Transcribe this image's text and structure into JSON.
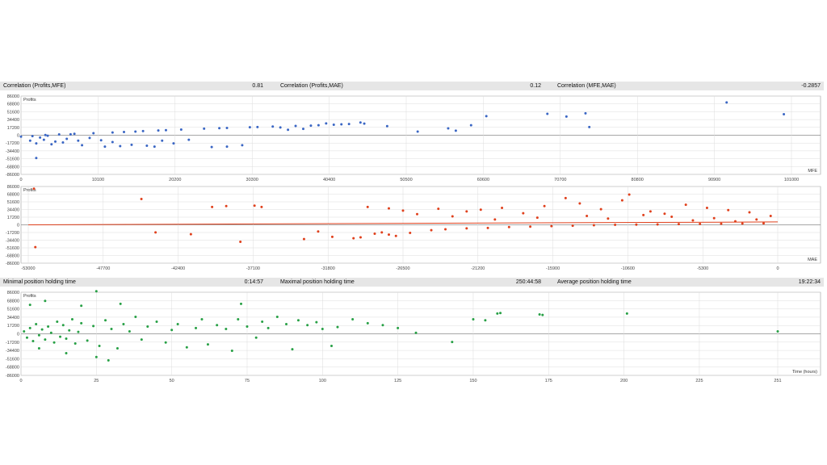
{
  "stats_top": {
    "corr_profits_mfe_label": "Correlation (Profits,MFE)",
    "corr_profits_mfe_value": "0.81",
    "corr_profits_mae_label": "Correlation (Profits,MAE)",
    "corr_profits_mae_value": "0.12",
    "corr_mfe_mae_label": "Correlation (MFE,MAE)",
    "corr_mfe_mae_value": "-0.2857"
  },
  "stats_mid": {
    "min_hold_label": "Minimal position holding time",
    "min_hold_value": "0:14:57",
    "max_hold_label": "Maximal position holding time",
    "max_hold_value": "250:44:58",
    "avg_hold_label": "Average position holding time",
    "avg_hold_value": "19:22:34"
  },
  "colors": {
    "mfe": "#3a66c4",
    "mae": "#e0401c",
    "time": "#27a045",
    "grid": "#dcdcdc",
    "axis": "#9a9a9a"
  },
  "chart_data": [
    {
      "type": "scatter",
      "id": "mfe",
      "ylabel": "Profits",
      "xlabel": "MFE",
      "ylim": [
        -86000,
        86000
      ],
      "xlim": [
        0,
        101000
      ],
      "yticks": [
        "86000",
        "68800",
        "51600",
        "34400",
        "17200",
        "0",
        "-17200",
        "-34400",
        "-51600",
        "-68800",
        "-86000"
      ],
      "xticks": [
        "0",
        "10100",
        "20200",
        "30300",
        "40400",
        "50500",
        "60600",
        "70700",
        "80800",
        "90900",
        "101000"
      ],
      "grid": true,
      "color": "#3a66c4",
      "points": [
        [
          0,
          -3000
        ],
        [
          1200,
          -12000
        ],
        [
          2500,
          -5000
        ],
        [
          3000,
          -10000
        ],
        [
          4500,
          -14000
        ],
        [
          6000,
          -8000
        ],
        [
          7500,
          -12000
        ],
        [
          9000,
          -6000
        ],
        [
          10500,
          -11000
        ],
        [
          12000,
          -15000
        ],
        [
          1500,
          -2000
        ],
        [
          3200,
          500
        ],
        [
          5000,
          1800
        ],
        [
          7000,
          3000
        ],
        [
          9500,
          4500
        ],
        [
          12000,
          6000
        ],
        [
          15000,
          8000
        ],
        [
          18000,
          10500
        ],
        [
          21000,
          12500
        ],
        [
          24000,
          14500
        ],
        [
          27000,
          16000
        ],
        [
          30000,
          17500
        ],
        [
          33000,
          19000
        ],
        [
          36000,
          20500
        ],
        [
          39000,
          22000
        ],
        [
          41000,
          23000
        ],
        [
          43000,
          24500
        ],
        [
          45000,
          25500
        ],
        [
          2000,
          -18000
        ],
        [
          4000,
          -20000
        ],
        [
          8000,
          -22000
        ],
        [
          11000,
          -25000
        ],
        [
          13000,
          -24000
        ],
        [
          14500,
          -21000
        ],
        [
          16500,
          -23000
        ],
        [
          18500,
          -12000
        ],
        [
          20000,
          -18000
        ],
        [
          22000,
          -10000
        ],
        [
          25000,
          -26000
        ],
        [
          27000,
          -25000
        ],
        [
          29000,
          -22000
        ],
        [
          35000,
          12000
        ],
        [
          37000,
          14000
        ],
        [
          40000,
          26000
        ],
        [
          42000,
          24000
        ],
        [
          44500,
          28000
        ],
        [
          48000,
          20000
        ],
        [
          52000,
          8000
        ],
        [
          56000,
          15000
        ],
        [
          57000,
          10000
        ],
        [
          59000,
          22000
        ],
        [
          61000,
          42000
        ],
        [
          69000,
          47000
        ],
        [
          71500,
          41000
        ],
        [
          74000,
          48000
        ],
        [
          74500,
          18000
        ],
        [
          92500,
          72000
        ],
        [
          100000,
          46000
        ],
        [
          3500,
          -1000
        ],
        [
          6500,
          2000
        ],
        [
          13500,
          7000
        ],
        [
          16000,
          9000
        ],
        [
          19000,
          11000
        ],
        [
          26000,
          15500
        ],
        [
          31000,
          18000
        ],
        [
          34000,
          17000
        ],
        [
          38000,
          21000
        ],
        [
          5500,
          -16000
        ],
        [
          17500,
          -25000
        ],
        [
          2000,
          -50000
        ]
      ]
    },
    {
      "type": "scatter",
      "id": "mae",
      "ylabel": "Profits",
      "xlabel": "MAE",
      "ylim": [
        -86000,
        86000
      ],
      "xlim": [
        -53000,
        0
      ],
      "yticks": [
        "86000",
        "68800",
        "51600",
        "34400",
        "17200",
        "0",
        "-17200",
        "-34400",
        "-51600",
        "-68800",
        "-86000"
      ],
      "xticks": [
        "-53000",
        "-47700",
        "-42400",
        "-37100",
        "-31800",
        "-26500",
        "-21200",
        "-15900",
        "-10600",
        "-5300",
        "0"
      ],
      "grid": true,
      "color": "#e0401c",
      "trendline": {
        "from": [
          -53000,
          0
        ],
        "to": [
          0,
          6500
        ]
      },
      "points": [
        [
          -52500,
          -50000
        ],
        [
          -52600,
          81000
        ],
        [
          -45000,
          58000
        ],
        [
          -44000,
          -17000
        ],
        [
          -41500,
          -21000
        ],
        [
          -40000,
          40000
        ],
        [
          -39000,
          42000
        ],
        [
          -38000,
          -38000
        ],
        [
          -37000,
          43000
        ],
        [
          -36500,
          40000
        ],
        [
          -33500,
          -32000
        ],
        [
          -32500,
          -15000
        ],
        [
          -31500,
          -27000
        ],
        [
          -30000,
          -30000
        ],
        [
          -29500,
          -28000
        ],
        [
          -28500,
          -20000
        ],
        [
          -28000,
          -17000
        ],
        [
          -27500,
          -22000
        ],
        [
          -27000,
          -25000
        ],
        [
          -26000,
          -18000
        ],
        [
          -24500,
          -12000
        ],
        [
          -23500,
          -10000
        ],
        [
          -22000,
          -8000
        ],
        [
          -20500,
          -7000
        ],
        [
          -19000,
          -5000
        ],
        [
          -17500,
          -4000
        ],
        [
          -16000,
          -3000
        ],
        [
          -14500,
          -2000
        ],
        [
          -13000,
          -1000
        ],
        [
          -11500,
          0
        ],
        [
          -10000,
          500
        ],
        [
          -8500,
          1000
        ],
        [
          -7000,
          1500
        ],
        [
          -5500,
          2000
        ],
        [
          -4000,
          2500
        ],
        [
          -2500,
          3000
        ],
        [
          -1000,
          3500
        ],
        [
          -29000,
          40000
        ],
        [
          -27500,
          37000
        ],
        [
          -26500,
          32000
        ],
        [
          -24000,
          36000
        ],
        [
          -22000,
          30000
        ],
        [
          -21000,
          34000
        ],
        [
          -19500,
          38000
        ],
        [
          -18000,
          26000
        ],
        [
          -16500,
          42000
        ],
        [
          -15000,
          60000
        ],
        [
          -14000,
          48000
        ],
        [
          -12500,
          35000
        ],
        [
          -11000,
          55000
        ],
        [
          -10500,
          68000
        ],
        [
          -9000,
          30000
        ],
        [
          -8000,
          25000
        ],
        [
          -6500,
          45000
        ],
        [
          -5000,
          38000
        ],
        [
          -3500,
          33000
        ],
        [
          -2000,
          28000
        ],
        [
          -500,
          20000
        ],
        [
          -1500,
          12000
        ],
        [
          -3000,
          8000
        ],
        [
          -4500,
          15000
        ],
        [
          -6000,
          10000
        ],
        [
          -7500,
          18000
        ],
        [
          -9500,
          22000
        ],
        [
          -12000,
          14000
        ],
        [
          -13500,
          20000
        ],
        [
          -17000,
          16000
        ],
        [
          -20000,
          12000
        ],
        [
          -23000,
          19000
        ],
        [
          -25500,
          24000
        ]
      ]
    },
    {
      "type": "scatter",
      "id": "time",
      "ylabel": "Profits",
      "xlabel": "Time (hours)",
      "ylim": [
        -86000,
        86000
      ],
      "xlim": [
        0,
        251
      ],
      "yticks": [
        "86000",
        "68800",
        "51600",
        "34400",
        "17200",
        "0",
        "-17200",
        "-34400",
        "-51600",
        "-68800",
        "-86000"
      ],
      "xticks": [
        "0",
        "25",
        "50",
        "75",
        "100",
        "125",
        "150",
        "175",
        "200",
        "225",
        "251"
      ],
      "grid": true,
      "color": "#27a045",
      "points": [
        [
          1,
          5000
        ],
        [
          2,
          -8000
        ],
        [
          3,
          12000
        ],
        [
          4,
          -15000
        ],
        [
          5,
          20000
        ],
        [
          6,
          -3000
        ],
        [
          7,
          9000
        ],
        [
          8,
          -12000
        ],
        [
          9,
          15000
        ],
        [
          10,
          2000
        ],
        [
          11,
          -18000
        ],
        [
          12,
          25000
        ],
        [
          13,
          -6000
        ],
        [
          14,
          18000
        ],
        [
          15,
          -10000
        ],
        [
          16,
          7000
        ],
        [
          17,
          30000
        ],
        [
          18,
          -20000
        ],
        [
          19,
          4000
        ],
        [
          20,
          22000
        ],
        [
          22,
          -14000
        ],
        [
          24,
          16000
        ],
        [
          25,
          88000
        ],
        [
          26,
          -25000
        ],
        [
          28,
          28000
        ],
        [
          30,
          10000
        ],
        [
          32,
          -30000
        ],
        [
          34,
          20000
        ],
        [
          36,
          5000
        ],
        [
          38,
          35000
        ],
        [
          40,
          -12000
        ],
        [
          42,
          15000
        ],
        [
          45,
          25000
        ],
        [
          48,
          -18000
        ],
        [
          50,
          8000
        ],
        [
          52,
          20000
        ],
        [
          55,
          -28000
        ],
        [
          58,
          12000
        ],
        [
          60,
          30000
        ],
        [
          62,
          -22000
        ],
        [
          65,
          18000
        ],
        [
          68,
          10000
        ],
        [
          70,
          -35000
        ],
        [
          72,
          30000
        ],
        [
          73,
          62000
        ],
        [
          75,
          15000
        ],
        [
          78,
          -8000
        ],
        [
          80,
          25000
        ],
        [
          82,
          12000
        ],
        [
          85,
          35000
        ],
        [
          88,
          20000
        ],
        [
          90,
          -32000
        ],
        [
          92,
          28000
        ],
        [
          95,
          18000
        ],
        [
          98,
          24000
        ],
        [
          100,
          10000
        ],
        [
          103,
          -25000
        ],
        [
          105,
          14000
        ],
        [
          110,
          30000
        ],
        [
          115,
          22000
        ],
        [
          120,
          18000
        ],
        [
          125,
          12000
        ],
        [
          131,
          2000
        ],
        [
          143,
          -17000
        ],
        [
          150,
          30000
        ],
        [
          154,
          28000
        ],
        [
          158,
          42000
        ],
        [
          159,
          43000
        ],
        [
          172,
          40000
        ],
        [
          173,
          39000
        ],
        [
          201,
          42000
        ],
        [
          251,
          5000
        ],
        [
          3,
          60000
        ],
        [
          8,
          68000
        ],
        [
          20,
          58000
        ],
        [
          25,
          -48000
        ],
        [
          29,
          -55000
        ],
        [
          33,
          62000
        ],
        [
          15,
          -40000
        ],
        [
          6,
          -30000
        ]
      ]
    }
  ]
}
